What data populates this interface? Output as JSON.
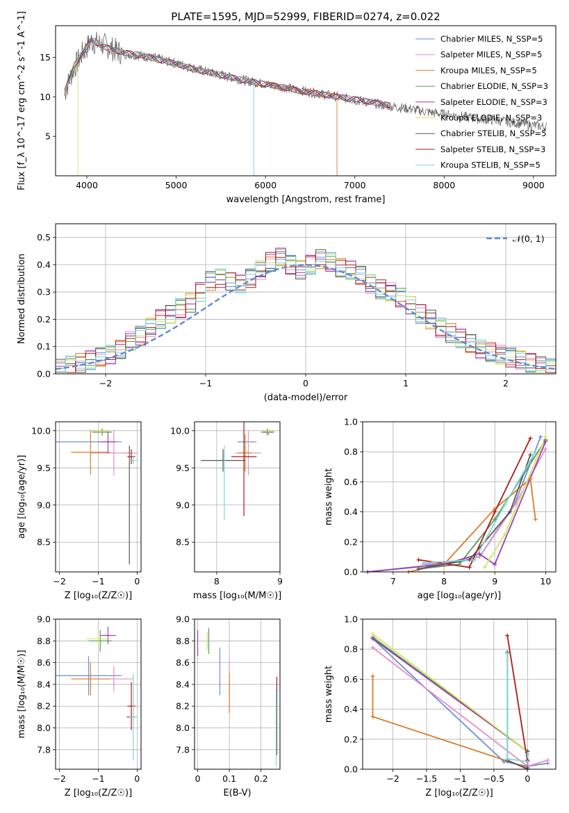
{
  "figure": {
    "title": "PLATE=1595, MJD=52999, FIBERID=0274, z=0.022"
  },
  "series": [
    {
      "label": "Chabrier MILES, N_SSP=5",
      "color": "#6b8fd8"
    },
    {
      "label": "Salpeter MILES, N_SSP=5",
      "color": "#e58fc7"
    },
    {
      "label": "Kroupa MILES, N_SSP=5",
      "color": "#d97b24"
    },
    {
      "label": "Chabrier ELODIE, N_SSP=3",
      "color": "#5a9a5a"
    },
    {
      "label": "Salpeter ELODIE, N_SSP=3",
      "color": "#9b3fb5"
    },
    {
      "label": "Kroupa ELODIE, N_SSP=3",
      "color": "#cfe85a"
    },
    {
      "label": "Chabrier STELIB, N_SSP=5",
      "color": "#555555"
    },
    {
      "label": "Salpeter STELIB, N_SSP=3",
      "color": "#b01818"
    },
    {
      "label": "Kroupa STELIB, N_SSP=5",
      "color": "#7fd6d6"
    }
  ],
  "chart_data": [
    {
      "type": "line",
      "title": "PLATE=1595, MJD=52999, FIBERID=0274, z=0.022",
      "xlabel": "wavelength [Angstrom, rest frame]",
      "ylabel": "Flux [f_λ 10^-17 erg cm^-2 s^-1 A^-1]",
      "xlim": [
        3650,
        9250
      ],
      "ylim": [
        0,
        19
      ],
      "xticks": [
        4000,
        5000,
        6000,
        7000,
        8000,
        9000
      ],
      "yticks": [
        5,
        10,
        15
      ],
      "grid": false,
      "legend": "top-right",
      "data_x": [
        3750,
        3850,
        3950,
        4050,
        4200,
        4400,
        4600,
        4800,
        5000,
        5200,
        5400,
        5600,
        5800,
        6000,
        6200,
        6400,
        6600,
        6800,
        7000,
        7200,
        7400,
        7600,
        7800,
        8000,
        8200,
        8400,
        8600,
        8800,
        9000,
        9150
      ],
      "data_y": [
        10.5,
        13.5,
        15.5,
        17.0,
        16.5,
        15.5,
        15.2,
        14.8,
        14.2,
        13.6,
        13.0,
        12.5,
        12.0,
        11.6,
        11.2,
        10.8,
        10.4,
        10.0,
        9.6,
        9.2,
        8.8,
        8.5,
        8.1,
        7.8,
        7.5,
        7.2,
        7.0,
        6.7,
        6.4,
        6.2
      ],
      "model_x": [
        3750,
        3850,
        3950,
        4050,
        4200,
        4400,
        4600,
        4800,
        5000,
        5200,
        5400,
        5600,
        5800,
        6000,
        6200,
        6400,
        6600,
        6800,
        7000,
        7200,
        7400
      ],
      "model_y": [
        10.5,
        13.8,
        15.5,
        17.2,
        16.3,
        15.6,
        15.3,
        14.7,
        14.2,
        13.5,
        13.0,
        12.5,
        12.0,
        11.6,
        11.2,
        10.7,
        10.4,
        10.0,
        9.7,
        9.3,
        8.9
      ],
      "model_cutoffs": [
        {
          "series": 5,
          "x": 3900
        },
        {
          "series": 8,
          "x": 5870
        },
        {
          "series": 2,
          "x": 6800
        },
        {
          "series": 7,
          "x": 7430
        }
      ]
    },
    {
      "type": "line",
      "xlabel": "(data-model)/error",
      "ylabel": "Normed distribution",
      "xlim": [
        -2.5,
        2.5
      ],
      "ylim": [
        0,
        0.55
      ],
      "xticks": [
        -2,
        -1,
        0,
        1,
        2
      ],
      "yticks": [
        0.0,
        0.1,
        0.2,
        0.3,
        0.4,
        0.5
      ],
      "grid": true,
      "legend": "top-right",
      "normal_label": "𝒩(0, 1)",
      "normal_color": "#5b8ad6",
      "bin_width": 0.1,
      "hist_values": [
        0.02,
        0.03,
        0.04,
        0.05,
        0.06,
        0.07,
        0.09,
        0.12,
        0.14,
        0.17,
        0.2,
        0.22,
        0.24,
        0.26,
        0.3,
        0.34,
        0.35,
        0.34,
        0.33,
        0.35,
        0.38,
        0.41,
        0.43,
        0.4,
        0.38,
        0.4,
        0.42,
        0.41,
        0.39,
        0.38,
        0.36,
        0.33,
        0.31,
        0.3,
        0.28,
        0.25,
        0.22,
        0.2,
        0.17,
        0.15,
        0.13,
        0.11,
        0.09,
        0.08,
        0.07,
        0.06,
        0.05,
        0.04,
        0.03,
        0.02
      ]
    },
    {
      "type": "scatter",
      "xlabel": "Z [log₁₀(Z/Z☉)]",
      "ylabel": "age [log₁₀(age/yr)]",
      "xlim": [
        -2.1,
        0.1
      ],
      "ylim": [
        8.1,
        10.12
      ],
      "xticks": [
        -2,
        -1,
        0
      ],
      "yticks": [
        8.5,
        9.0,
        9.5,
        10.0
      ],
      "grid": true,
      "points": [
        {
          "series": 0,
          "x": -1.25,
          "y": 9.85,
          "xerr": 0.85,
          "yerr": 0.0
        },
        {
          "series": 1,
          "x": -0.6,
          "y": 9.7,
          "xerr": 0.6,
          "yerr": 0.3
        },
        {
          "series": 2,
          "x": -1.2,
          "y": 9.71,
          "xerr": 0.5,
          "yerr": 0.3
        },
        {
          "series": 3,
          "x": -0.9,
          "y": 9.98,
          "xerr": 0.25,
          "yerr": 0.05
        },
        {
          "series": 4,
          "x": -0.75,
          "y": 9.85,
          "xerr": 0.2,
          "yerr": 0.15
        },
        {
          "series": 5,
          "x": -0.95,
          "y": 9.99,
          "xerr": 0.25,
          "yerr": 0.03
        },
        {
          "series": 6,
          "x": -0.2,
          "y": 9.0,
          "xerr": 0.0,
          "yerr": 0.8
        },
        {
          "series": 7,
          "x": -0.15,
          "y": 9.65,
          "xerr": 0.1,
          "yerr": 0.1
        },
        {
          "series": 8,
          "x": -0.1,
          "y": 9.6,
          "xerr": 0.1,
          "yerr": 0.05
        }
      ]
    },
    {
      "type": "scatter",
      "xlabel": "mass [log₁₀(M/M☉)]",
      "ylabel": "",
      "xlim": [
        7.65,
        9.0
      ],
      "ylim": [
        8.1,
        10.12
      ],
      "xticks": [
        8,
        9
      ],
      "yticks": [
        8.5,
        9.0,
        9.5,
        10.0
      ],
      "grid": true,
      "points": [
        {
          "series": 0,
          "x": 8.48,
          "y": 9.85,
          "xerr": 0.15,
          "yerr": 0.0
        },
        {
          "series": 1,
          "x": 8.5,
          "y": 9.7,
          "xerr": 0.2,
          "yerr": 0.3
        },
        {
          "series": 2,
          "x": 8.45,
          "y": 9.7,
          "xerr": 0.1,
          "yerr": 0.25
        },
        {
          "series": 3,
          "x": 8.8,
          "y": 9.98,
          "xerr": 0.1,
          "yerr": 0.05
        },
        {
          "series": 4,
          "x": 8.82,
          "y": 9.98,
          "xerr": 0.08,
          "yerr": 0.03
        },
        {
          "series": 5,
          "x": 8.82,
          "y": 9.99,
          "xerr": 0.1,
          "yerr": 0.02
        },
        {
          "series": 6,
          "x": 8.1,
          "y": 9.6,
          "xerr": 0.35,
          "yerr": 0.15
        },
        {
          "series": 7,
          "x": 8.43,
          "y": 9.65,
          "xerr": 0.2,
          "yerr": 0.8
        },
        {
          "series": 8,
          "x": 8.12,
          "y": 9.3,
          "xerr": 0.0,
          "yerr": 0.5
        }
      ]
    },
    {
      "type": "line",
      "xlabel": "age [log₁₀(age/yr)]",
      "ylabel": "mass weight",
      "xlim": [
        6.4,
        10.2
      ],
      "ylim": [
        0,
        1
      ],
      "xticks": [
        7,
        8,
        9,
        10
      ],
      "yticks": [
        0.0,
        0.2,
        0.4,
        0.6,
        0.8,
        1.0
      ],
      "grid": true,
      "lines": [
        {
          "series": 0,
          "x": [
            6.5,
            7.6,
            8.0,
            8.7,
            9.4,
            9.9
          ],
          "y": [
            0.0,
            0.04,
            0.06,
            0.1,
            0.46,
            0.9
          ]
        },
        {
          "series": 1,
          "x": [
            7.6,
            8.0,
            8.7,
            9.4,
            10.0
          ],
          "y": [
            0.05,
            0.06,
            0.1,
            0.45,
            0.82
          ]
        },
        {
          "series": 2,
          "x": [
            7.3,
            8.0,
            9.0,
            9.7,
            9.8
          ],
          "y": [
            0.0,
            0.05,
            0.42,
            0.62,
            0.35
          ]
        },
        {
          "series": 3,
          "x": [
            7.5,
            8.3,
            9.0,
            10.0
          ],
          "y": [
            0.02,
            0.05,
            0.35,
            0.88
          ]
        },
        {
          "series": 4,
          "x": [
            6.5,
            8.0,
            8.7,
            9.0,
            10.0
          ],
          "y": [
            0.0,
            0.05,
            0.12,
            0.05,
            0.87
          ]
        },
        {
          "series": 5,
          "x": [
            8.8,
            9.2,
            10.0
          ],
          "y": [
            0.03,
            0.25,
            0.9
          ]
        },
        {
          "series": 6,
          "x": [
            7.5,
            8.5,
            9.3,
            9.7
          ],
          "y": [
            0.02,
            0.08,
            0.4,
            0.78
          ]
        },
        {
          "series": 7,
          "x": [
            7.5,
            8.5,
            9.0,
            9.7
          ],
          "y": [
            0.08,
            0.03,
            0.4,
            0.89
          ]
        },
        {
          "series": 8,
          "x": [
            7.6,
            8.6,
            9.2,
            9.8
          ],
          "y": [
            0.06,
            0.08,
            0.45,
            0.8
          ]
        }
      ]
    },
    {
      "type": "scatter",
      "xlabel": "Z [log₁₀(Z/Z☉)]",
      "ylabel": "mass [log₁₀(M/M☉)]",
      "xlim": [
        -2.1,
        0.1
      ],
      "ylim": [
        7.62,
        9.0
      ],
      "xticks": [
        -2,
        -1,
        0
      ],
      "yticks": [
        7.8,
        8.0,
        8.2,
        8.4,
        8.6,
        8.8,
        9.0
      ],
      "grid": true,
      "points": [
        {
          "series": 0,
          "x": -1.25,
          "y": 8.48,
          "xerr": 0.85,
          "yerr": 0.18
        },
        {
          "series": 1,
          "x": -0.6,
          "y": 8.45,
          "xerr": 0.5,
          "yerr": 0.12
        },
        {
          "series": 2,
          "x": -1.2,
          "y": 8.45,
          "xerr": 0.5,
          "yerr": 0.15
        },
        {
          "series": 3,
          "x": -0.95,
          "y": 8.8,
          "xerr": 0.3,
          "yerr": 0.1
        },
        {
          "series": 4,
          "x": -0.75,
          "y": 8.85,
          "xerr": 0.2,
          "yerr": 0.08
        },
        {
          "series": 5,
          "x": -1.0,
          "y": 8.82,
          "xerr": 0.3,
          "yerr": 0.05
        },
        {
          "series": 6,
          "x": -0.15,
          "y": 8.1,
          "xerr": 0.12,
          "yerr": 0.02
        },
        {
          "series": 7,
          "x": -0.15,
          "y": 8.2,
          "xerr": 0.1,
          "yerr": 0.22
        },
        {
          "series": 8,
          "x": -0.1,
          "y": 8.1,
          "xerr": 0.1,
          "yerr": 0.4
        }
      ]
    },
    {
      "type": "scatter",
      "xlabel": "E(B-V)",
      "ylabel": "",
      "xlim": [
        -0.01,
        0.26
      ],
      "ylim": [
        7.62,
        9.0
      ],
      "xticks": [
        0.0,
        0.1,
        0.2
      ],
      "yticks": [
        7.8,
        8.0,
        8.2,
        8.4,
        8.6,
        8.8,
        9.0
      ],
      "grid": true,
      "points": [
        {
          "series": 0,
          "x": 0.07,
          "y": 8.52,
          "xerr": 0.0,
          "yerr": 0.22
        },
        {
          "series": 1,
          "x": 0.1,
          "y": 8.38,
          "xerr": 0.0,
          "yerr": 0.25
        },
        {
          "series": 2,
          "x": 0.1,
          "y": 8.32,
          "xerr": 0.0,
          "yerr": 0.18
        },
        {
          "series": 3,
          "x": 0.035,
          "y": 8.8,
          "xerr": 0.0,
          "yerr": 0.12
        },
        {
          "series": 4,
          "x": 0.0,
          "y": 8.78,
          "xerr": 0.0,
          "yerr": 0.12
        },
        {
          "series": 5,
          "x": 0.03,
          "y": 8.8,
          "xerr": 0.0,
          "yerr": 0.08
        },
        {
          "series": 6,
          "x": 0.25,
          "y": 8.05,
          "xerr": 0.0,
          "yerr": 0.3
        },
        {
          "series": 7,
          "x": 0.25,
          "y": 8.4,
          "xerr": 0.0,
          "yerr": 0.07
        },
        {
          "series": 8,
          "x": 0.248,
          "y": 8.0,
          "xerr": 0.0,
          "yerr": 0.35
        }
      ]
    },
    {
      "type": "line",
      "xlabel": "Z [log₁₀(Z/Z☉)]",
      "ylabel": "mass weight",
      "xlim": [
        -2.45,
        0.42
      ],
      "ylim": [
        0,
        1
      ],
      "xticks": [
        -2.0,
        -1.5,
        -1.0,
        -0.5,
        0.0
      ],
      "yticks": [
        0.0,
        0.2,
        0.4,
        0.6,
        0.8,
        1.0
      ],
      "grid": true,
      "lines": [
        {
          "series": 0,
          "x": [
            -2.3,
            -0.35,
            0.0,
            0.3
          ],
          "y": [
            0.87,
            0.05,
            0.02,
            0.04
          ]
        },
        {
          "series": 1,
          "x": [
            -2.3,
            0.0,
            0.3
          ],
          "y": [
            0.81,
            0.02,
            0.06
          ]
        },
        {
          "series": 2,
          "x": [
            -2.3,
            -2.3,
            0.0
          ],
          "y": [
            0.62,
            0.35,
            0.01
          ]
        },
        {
          "series": 3,
          "x": [
            -2.3,
            0.0,
            0.0
          ],
          "y": [
            0.88,
            0.12,
            0.0
          ]
        },
        {
          "series": 4,
          "x": [
            -2.3,
            0.0,
            0.0
          ],
          "y": [
            0.87,
            0.12,
            0.01
          ]
        },
        {
          "series": 5,
          "x": [
            -2.3,
            0.0
          ],
          "y": [
            0.9,
            0.12
          ]
        },
        {
          "series": 6,
          "x": [
            -0.3,
            -0.3,
            0.0,
            0.0
          ],
          "y": [
            0.78,
            0.06,
            0.0,
            0.12
          ]
        },
        {
          "series": 7,
          "x": [
            -0.3,
            0.0,
            0.0
          ],
          "y": [
            0.89,
            0.05,
            0.06
          ]
        },
        {
          "series": 8,
          "x": [
            -0.3,
            -0.3,
            0.0,
            0.0
          ],
          "y": [
            0.77,
            0.07,
            0.05,
            0.1
          ]
        }
      ]
    }
  ]
}
